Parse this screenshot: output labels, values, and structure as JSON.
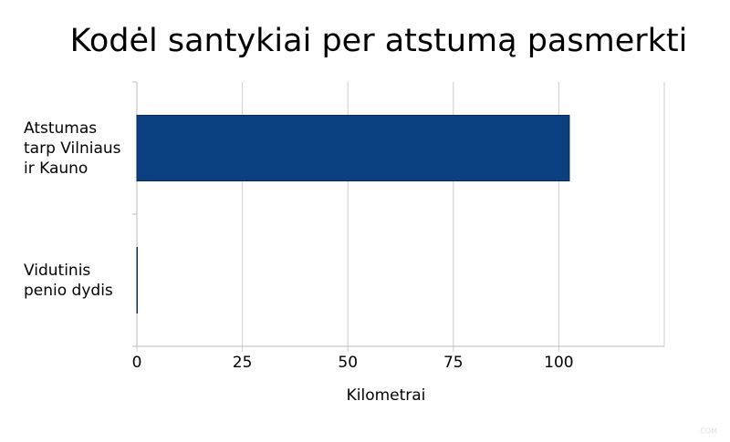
{
  "chart_data": {
    "type": "barh",
    "title": "Kodėl santykiai per atstumą pasmerkti",
    "x_label": "Kilometrai",
    "categories": [
      "Atstumas tarp Vilniaus ir Kauno",
      "Vidutinis penio dydis"
    ],
    "values": [
      102.5,
      0.00015
    ],
    "color": "#0b3f80",
    "xlim": [
      0,
      125
    ],
    "xticks": [
      0,
      25,
      50,
      75,
      100
    ],
    "grid": true,
    "watermark": ".COM"
  }
}
